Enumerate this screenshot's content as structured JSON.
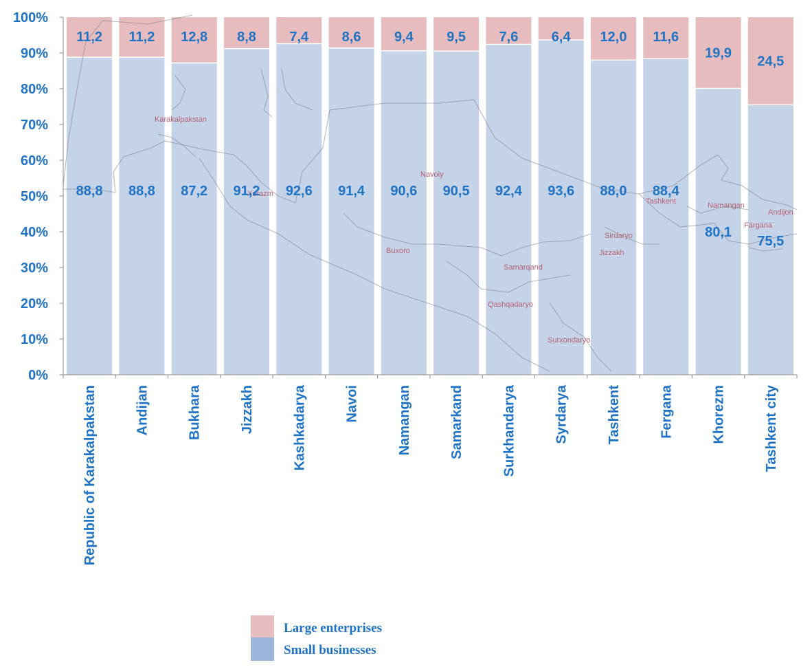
{
  "chart_data": {
    "type": "bar",
    "stacked": true,
    "percent": true,
    "categories": [
      "Republic of Karakalpakstan",
      "Andijan",
      "Bukhara",
      "Jizzakh",
      "Kashkadarya",
      "Navoi",
      "Namangan",
      "Samarkand",
      "Surkhandarya",
      "Syrdarya",
      "Tashkent",
      "Fergana",
      "Khorezm",
      "Tashkent city"
    ],
    "series": [
      {
        "name": "Small businesses",
        "color": "#c5d3e8",
        "legend_color": "#9ab4da",
        "values": [
          88.8,
          88.8,
          87.2,
          91.2,
          92.6,
          91.4,
          90.6,
          90.5,
          92.4,
          93.6,
          88.0,
          88.4,
          80.1,
          75.5
        ],
        "labels": [
          "88,8",
          "88,8",
          "87,2",
          "91,2",
          "92,6",
          "91,4",
          "90,6",
          "90,5",
          "92,4",
          "93,6",
          "88,0",
          "88,4",
          "80,1",
          "75,5"
        ]
      },
      {
        "name": "Large enterprises",
        "color": "#e7bcbf",
        "legend_color": "#e7bcbf",
        "values": [
          11.2,
          11.2,
          12.8,
          8.8,
          7.4,
          8.6,
          9.4,
          9.5,
          7.6,
          6.4,
          12.0,
          11.6,
          19.9,
          24.5
        ],
        "labels": [
          "11,2",
          "11,2",
          "12,8",
          "8,8",
          "7,4",
          "8,6",
          "9,4",
          "9,5",
          "7,6",
          "6,4",
          "12,0",
          "11,6",
          "19,9",
          "24,5"
        ]
      }
    ],
    "yticks": [
      "0%",
      "10%",
      "20%",
      "30%",
      "40%",
      "50%",
      "60%",
      "70%",
      "80%",
      "90%",
      "100%"
    ],
    "ylim": [
      0,
      100
    ],
    "legend_position": "bottom",
    "background_map_labels": [
      "Karakalpakstan",
      "Xorazm",
      "Navoiy",
      "Buxoro",
      "Samarqand",
      "Qashqadaryo",
      "Surxondaryo",
      "Jizzakh",
      "Sirdaryo",
      "Tashkent",
      "Namangan",
      "Andijon",
      "Fargana"
    ]
  }
}
